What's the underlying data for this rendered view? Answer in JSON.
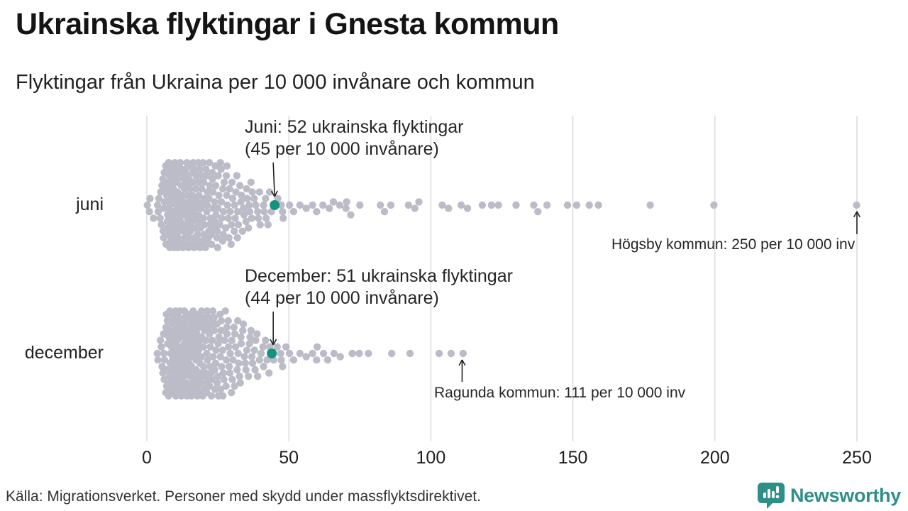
{
  "chart_data": {
    "type": "beeswarm",
    "title": "Ukrainska flyktingar i Gnesta kommun",
    "subtitle": "Flyktingar från Ukraina per 10 000 invånare och kommun",
    "xlabel": "",
    "ylabel": "",
    "x_range": [
      0,
      250
    ],
    "x_ticks": [
      0,
      50,
      100,
      150,
      200,
      250
    ],
    "grid": true,
    "legend": "none",
    "dot_color": "#bcbcc9",
    "highlight_color": "#14947e",
    "grid_color": "#d9d9de",
    "arrow_color": "#222222",
    "rows": [
      {
        "label": "juni",
        "highlight_value": 45,
        "bins": [
          [
            0.5,
            1
          ],
          [
            1,
            2
          ],
          [
            2,
            1
          ],
          [
            4,
            3
          ],
          [
            5,
            4
          ],
          [
            6,
            6
          ],
          [
            7,
            8
          ],
          [
            8,
            11
          ],
          [
            9,
            12
          ],
          [
            10,
            12
          ],
          [
            11,
            12
          ],
          [
            12,
            11
          ],
          [
            13,
            10
          ],
          [
            14,
            11
          ],
          [
            15,
            10
          ],
          [
            16,
            9
          ],
          [
            17,
            9
          ],
          [
            18,
            8
          ],
          [
            19,
            8
          ],
          [
            20,
            8
          ],
          [
            21,
            7
          ],
          [
            22,
            7
          ],
          [
            23,
            6
          ],
          [
            24,
            6
          ],
          [
            25,
            6
          ],
          [
            26,
            5
          ],
          [
            27,
            5
          ],
          [
            28,
            5
          ],
          [
            29,
            4
          ],
          [
            30,
            4
          ],
          [
            31,
            4
          ],
          [
            32,
            4
          ],
          [
            33,
            3
          ],
          [
            34,
            3
          ],
          [
            35,
            3
          ],
          [
            36,
            3
          ],
          [
            37,
            3
          ],
          [
            38,
            2
          ],
          [
            39,
            2
          ],
          [
            40,
            2
          ],
          [
            41,
            2
          ],
          [
            42,
            2
          ],
          [
            43,
            2
          ],
          [
            44,
            1
          ],
          [
            46,
            1
          ],
          [
            47,
            1
          ],
          [
            48,
            2
          ],
          [
            50,
            1
          ],
          [
            52,
            1
          ],
          [
            54,
            1
          ],
          [
            56,
            1
          ],
          [
            58,
            1
          ],
          [
            60,
            1
          ],
          [
            62,
            1
          ],
          [
            64,
            1
          ],
          [
            66,
            1
          ],
          [
            68,
            1
          ],
          [
            70,
            2
          ],
          [
            72,
            1
          ],
          [
            75,
            1
          ],
          [
            82,
            1
          ],
          [
            84,
            1
          ],
          [
            86,
            1
          ],
          [
            92,
            1
          ],
          [
            94,
            1
          ],
          [
            96,
            1
          ],
          [
            104,
            1
          ],
          [
            106,
            1
          ],
          [
            111,
            1
          ],
          [
            113,
            1
          ],
          [
            118,
            1
          ],
          [
            121,
            1
          ],
          [
            124,
            1
          ],
          [
            130,
            1
          ],
          [
            136,
            1
          ],
          [
            138,
            1
          ],
          [
            141,
            1
          ],
          [
            148,
            1
          ],
          [
            151,
            1
          ],
          [
            156,
            1
          ],
          [
            159,
            1
          ],
          [
            177,
            1
          ],
          [
            200,
            1
          ],
          [
            250,
            1
          ]
        ]
      },
      {
        "label": "december",
        "highlight_value": 44,
        "bins": [
          [
            4,
            2
          ],
          [
            5,
            3
          ],
          [
            6,
            5
          ],
          [
            7,
            7
          ],
          [
            8,
            9
          ],
          [
            9,
            11
          ],
          [
            10,
            12
          ],
          [
            11,
            12
          ],
          [
            12,
            12
          ],
          [
            13,
            11
          ],
          [
            14,
            11
          ],
          [
            15,
            10
          ],
          [
            16,
            10
          ],
          [
            17,
            9
          ],
          [
            18,
            9
          ],
          [
            19,
            8
          ],
          [
            20,
            8
          ],
          [
            21,
            8
          ],
          [
            22,
            7
          ],
          [
            23,
            7
          ],
          [
            24,
            6
          ],
          [
            25,
            6
          ],
          [
            26,
            6
          ],
          [
            27,
            5
          ],
          [
            28,
            5
          ],
          [
            29,
            5
          ],
          [
            30,
            4
          ],
          [
            31,
            4
          ],
          [
            32,
            4
          ],
          [
            33,
            4
          ],
          [
            34,
            3
          ],
          [
            35,
            3
          ],
          [
            36,
            3
          ],
          [
            37,
            3
          ],
          [
            38,
            3
          ],
          [
            39,
            2
          ],
          [
            40,
            2
          ],
          [
            41,
            2
          ],
          [
            42,
            2
          ],
          [
            43,
            2
          ],
          [
            45,
            1
          ],
          [
            46,
            1
          ],
          [
            47,
            2
          ],
          [
            48,
            1
          ],
          [
            49,
            1
          ],
          [
            50,
            1
          ],
          [
            52,
            1
          ],
          [
            54,
            1
          ],
          [
            56,
            1
          ],
          [
            58,
            1
          ],
          [
            60,
            2
          ],
          [
            62,
            1
          ],
          [
            64,
            1
          ],
          [
            66,
            1
          ],
          [
            68,
            1
          ],
          [
            72,
            1
          ],
          [
            75,
            1
          ],
          [
            78,
            1
          ],
          [
            86,
            1
          ],
          [
            93,
            1
          ],
          [
            103,
            1
          ],
          [
            107,
            1
          ],
          [
            111,
            1
          ]
        ]
      }
    ],
    "annotations": {
      "highlight_juni": {
        "row": 0,
        "value": 45,
        "line1": "Juni: 52 ukrainska flyktingar",
        "line2": "(45 per 10 000 invånare)"
      },
      "highlight_december": {
        "row": 1,
        "value": 44,
        "line1": "December: 51 ukrainska flyktingar",
        "line2": "(44 per 10 000 invånare)"
      },
      "max_juni": {
        "row": 0,
        "value": 250,
        "text": "Högsby kommun: 250 per 10 000 inv"
      },
      "max_december": {
        "row": 1,
        "value": 111,
        "text": "Ragunda kommun: 111 per 10 000 inv"
      }
    }
  },
  "footer": {
    "source": "Källa: Migrationsverket. Personer med skydd under massflyktsdirektivet.",
    "brand": "Newsworthy"
  }
}
